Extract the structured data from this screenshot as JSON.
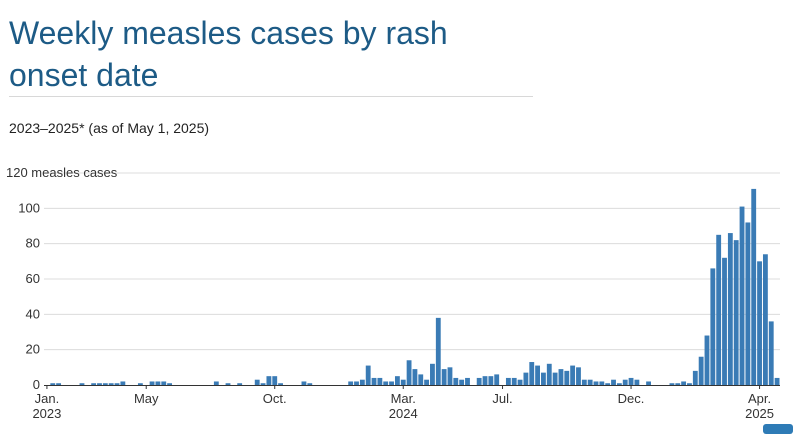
{
  "title": "Weekly measles cases by rash onset date",
  "subtitle": "2023–2025* (as of May 1, 2025)",
  "colors": {
    "bar": "#3a7bb5",
    "title": "#1d5b86",
    "grid": "#dcdcdc",
    "axis": "#333333"
  },
  "chart_data": {
    "type": "bar",
    "title": "Weekly measles cases by rash onset date",
    "subtitle": "2023–2025* (as of May 1, 2025)",
    "ylabel": "measles cases",
    "ylim": [
      0,
      120
    ],
    "yticks": [
      0,
      20,
      40,
      60,
      80,
      100,
      120
    ],
    "y_top_label": "120 measles cases",
    "grid": true,
    "xticks": [
      {
        "label": "Jan.",
        "sublabel": "2023",
        "week": 0
      },
      {
        "label": "May",
        "sublabel": "",
        "week": 17
      },
      {
        "label": "Oct.",
        "sublabel": "",
        "week": 39
      },
      {
        "label": "Mar.",
        "sublabel": "2024",
        "week": 61
      },
      {
        "label": "Jul.",
        "sublabel": "",
        "week": 78
      },
      {
        "label": "Dec.",
        "sublabel": "",
        "week": 100
      },
      {
        "label": "Apr.",
        "sublabel": "2025",
        "week": 122
      }
    ],
    "values": [
      0,
      1,
      1,
      0,
      0,
      0,
      1,
      0,
      1,
      1,
      1,
      1,
      1,
      2,
      0,
      0,
      1,
      0,
      2,
      2,
      2,
      1,
      0,
      0,
      0,
      0,
      0,
      0,
      0,
      2,
      0,
      1,
      0,
      1,
      0,
      0,
      3,
      1,
      5,
      5,
      1,
      0,
      0,
      0,
      2,
      1,
      0,
      0,
      0,
      0,
      0,
      0,
      2,
      2,
      3,
      11,
      4,
      4,
      2,
      2,
      5,
      3,
      14,
      9,
      6,
      3,
      12,
      38,
      9,
      10,
      4,
      3,
      4,
      0,
      4,
      5,
      5,
      6,
      0,
      4,
      4,
      3,
      7,
      13,
      11,
      7,
      12,
      7,
      9,
      8,
      11,
      10,
      3,
      3,
      2,
      2,
      1,
      3,
      1,
      3,
      4,
      3,
      0,
      2,
      0,
      0,
      0,
      1,
      1,
      2,
      1,
      8,
      16,
      28,
      66,
      85,
      72,
      86,
      82,
      101,
      92,
      111,
      70,
      74,
      36,
      4
    ]
  }
}
